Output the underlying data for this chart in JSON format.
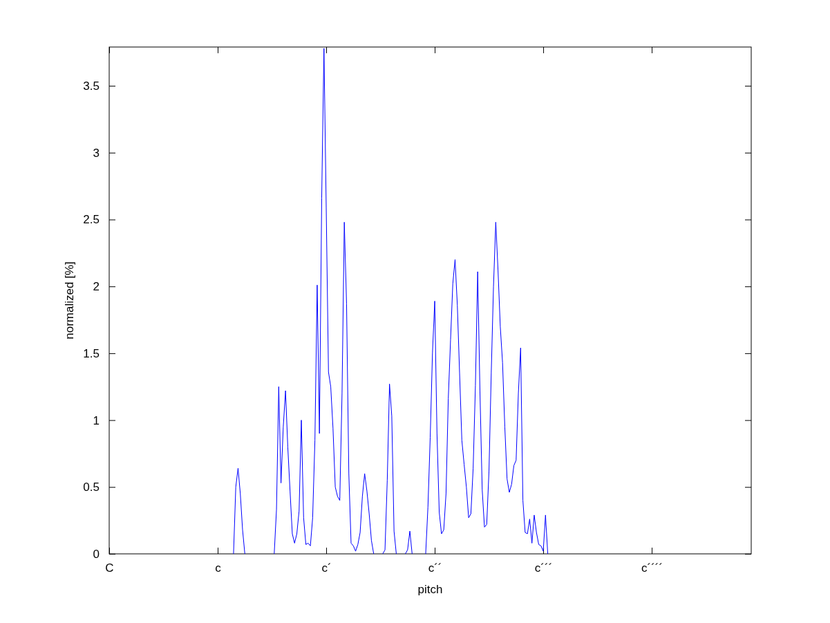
{
  "chart_data": {
    "type": "line",
    "xlabel": "pitch",
    "ylabel": "normalized [%]",
    "categories": [
      "C",
      null,
      null,
      null,
      null,
      null,
      null,
      null,
      null,
      null,
      null,
      null,
      null,
      null,
      null,
      null,
      null,
      null,
      null,
      null,
      null,
      null,
      null,
      null,
      null,
      null,
      null,
      null,
      null,
      null,
      null,
      null,
      null,
      null,
      null,
      null,
      null,
      null,
      null,
      null,
      null,
      null,
      null,
      null,
      null,
      null,
      null,
      null,
      "c",
      null,
      null,
      null,
      null,
      null,
      null,
      null,
      null,
      null,
      null,
      null,
      null,
      null,
      null,
      null,
      null,
      null,
      null,
      null,
      null,
      null,
      null,
      null,
      null,
      null,
      null,
      null,
      null,
      null,
      null,
      null,
      null,
      null,
      null,
      null,
      null,
      null,
      null,
      null,
      null,
      null,
      null,
      null,
      null,
      null,
      null,
      null,
      "c´",
      null,
      null,
      null,
      null,
      null,
      null,
      null,
      null,
      null,
      null,
      null,
      null,
      null,
      null,
      null,
      null,
      null,
      null,
      null,
      null,
      null,
      null,
      null,
      null,
      null,
      null,
      null,
      null,
      null,
      null,
      null,
      null,
      null,
      null,
      null,
      null,
      null,
      null,
      null,
      null,
      null,
      null,
      null,
      null,
      null,
      null,
      null,
      "c´´",
      null,
      null,
      null,
      null,
      null,
      null,
      null,
      null,
      null,
      null,
      null,
      null,
      null,
      null,
      null,
      null,
      null,
      null,
      null,
      null,
      null,
      null,
      null,
      null,
      null,
      null,
      null,
      null,
      null,
      null,
      null,
      null,
      null,
      null,
      null,
      null,
      null,
      null,
      null,
      null,
      null,
      null,
      null,
      null,
      null,
      null,
      null,
      "c´´´",
      null,
      null,
      null,
      null,
      null,
      null,
      null,
      null,
      null,
      null,
      null,
      null,
      null,
      null,
      null,
      null,
      null,
      null,
      null,
      null,
      null,
      null,
      null,
      null,
      null,
      null,
      null,
      null,
      null,
      null,
      null,
      null,
      null,
      null,
      null,
      null,
      null,
      null,
      null,
      null,
      null,
      null,
      null,
      null,
      null,
      null,
      null,
      "c´´´´",
      null,
      null,
      null,
      null,
      null,
      null,
      null,
      null,
      null,
      null,
      null,
      null,
      null,
      null,
      null,
      null,
      null,
      null,
      null,
      null,
      null,
      null,
      null,
      null,
      null,
      null,
      null,
      null,
      null,
      null,
      null,
      null,
      null,
      null,
      null,
      null,
      null,
      null,
      null,
      null,
      null,
      null,
      null,
      null
    ],
    "ylim": [
      0,
      3.79
    ],
    "yticks": [
      0,
      0.5,
      1,
      1.5,
      2,
      2.5,
      3,
      3.5
    ],
    "grid": false,
    "marker": "none",
    "line_style": "solid",
    "series": [
      {
        "color": "#0000ff",
        "values": [
          null,
          null,
          null,
          null,
          null,
          null,
          null,
          null,
          null,
          null,
          null,
          null,
          null,
          null,
          null,
          null,
          null,
          null,
          null,
          null,
          null,
          null,
          null,
          null,
          null,
          null,
          null,
          null,
          null,
          null,
          null,
          null,
          null,
          null,
          null,
          null,
          null,
          null,
          null,
          null,
          null,
          null,
          null,
          null,
          null,
          null,
          null,
          null,
          null,
          null,
          null,
          null,
          null,
          null,
          null,
          0,
          0.5,
          0.64,
          0.45,
          0.18,
          0,
          null,
          null,
          null,
          null,
          null,
          null,
          null,
          null,
          null,
          null,
          null,
          null,
          0,
          0.33,
          1.25,
          0.53,
          0.95,
          1.22,
          0.8,
          0.47,
          0.15,
          0.08,
          0.15,
          0.32,
          1,
          0.27,
          0.07,
          0.08,
          0.06,
          0.27,
          0.85,
          2.01,
          0.9,
          2.66,
          3.78,
          2.59,
          1.36,
          1.25,
          0.94,
          0.5,
          0.43,
          0.4,
          1.2,
          2.48,
          1.87,
          0.6,
          0.08,
          0.06,
          0.02,
          0.07,
          0.16,
          0.43,
          0.6,
          0.47,
          0.3,
          0.1,
          0,
          null,
          null,
          null,
          0,
          0.03,
          0.55,
          1.27,
          1.03,
          0.17,
          0,
          null,
          null,
          null,
          0,
          0.03,
          0.17,
          0,
          null,
          null,
          null,
          null,
          null,
          0,
          0.35,
          0.87,
          1.5,
          1.89,
          0.9,
          0.31,
          0.15,
          0.18,
          0.45,
          1.16,
          1.6,
          2.02,
          2.2,
          1.86,
          1.35,
          0.85,
          0.67,
          0.5,
          0.27,
          0.3,
          0.64,
          1.26,
          2.11,
          1.22,
          0.48,
          0.2,
          0.22,
          0.62,
          1.35,
          2,
          2.48,
          2.12,
          1.7,
          1.43,
          0.95,
          0.56,
          0.46,
          0.52,
          0.66,
          0.7,
          1.2,
          1.54,
          0.4,
          0.16,
          0.15,
          0.26,
          0.08,
          0.29,
          0.16,
          0.07,
          0.06,
          0.02,
          0.29,
          0,
          null,
          null,
          null,
          null,
          null,
          null,
          null,
          null,
          null,
          null,
          null,
          null,
          null,
          null,
          null,
          null,
          null,
          null,
          null,
          null,
          null,
          null,
          null,
          null,
          null,
          null,
          null,
          null,
          null,
          null,
          null,
          null,
          null,
          null,
          null,
          null,
          null,
          null,
          null,
          null,
          null,
          null,
          null,
          null,
          null,
          null,
          null,
          null,
          null,
          null,
          null,
          null,
          null,
          null,
          null,
          null,
          null,
          null,
          null,
          null,
          null,
          null,
          null,
          null,
          null,
          null,
          null,
          null,
          null,
          null,
          null,
          null,
          null,
          null,
          null,
          null,
          null,
          null,
          null,
          null,
          null,
          null,
          null,
          null,
          null,
          null,
          null,
          null,
          null,
          null
        ]
      }
    ]
  }
}
